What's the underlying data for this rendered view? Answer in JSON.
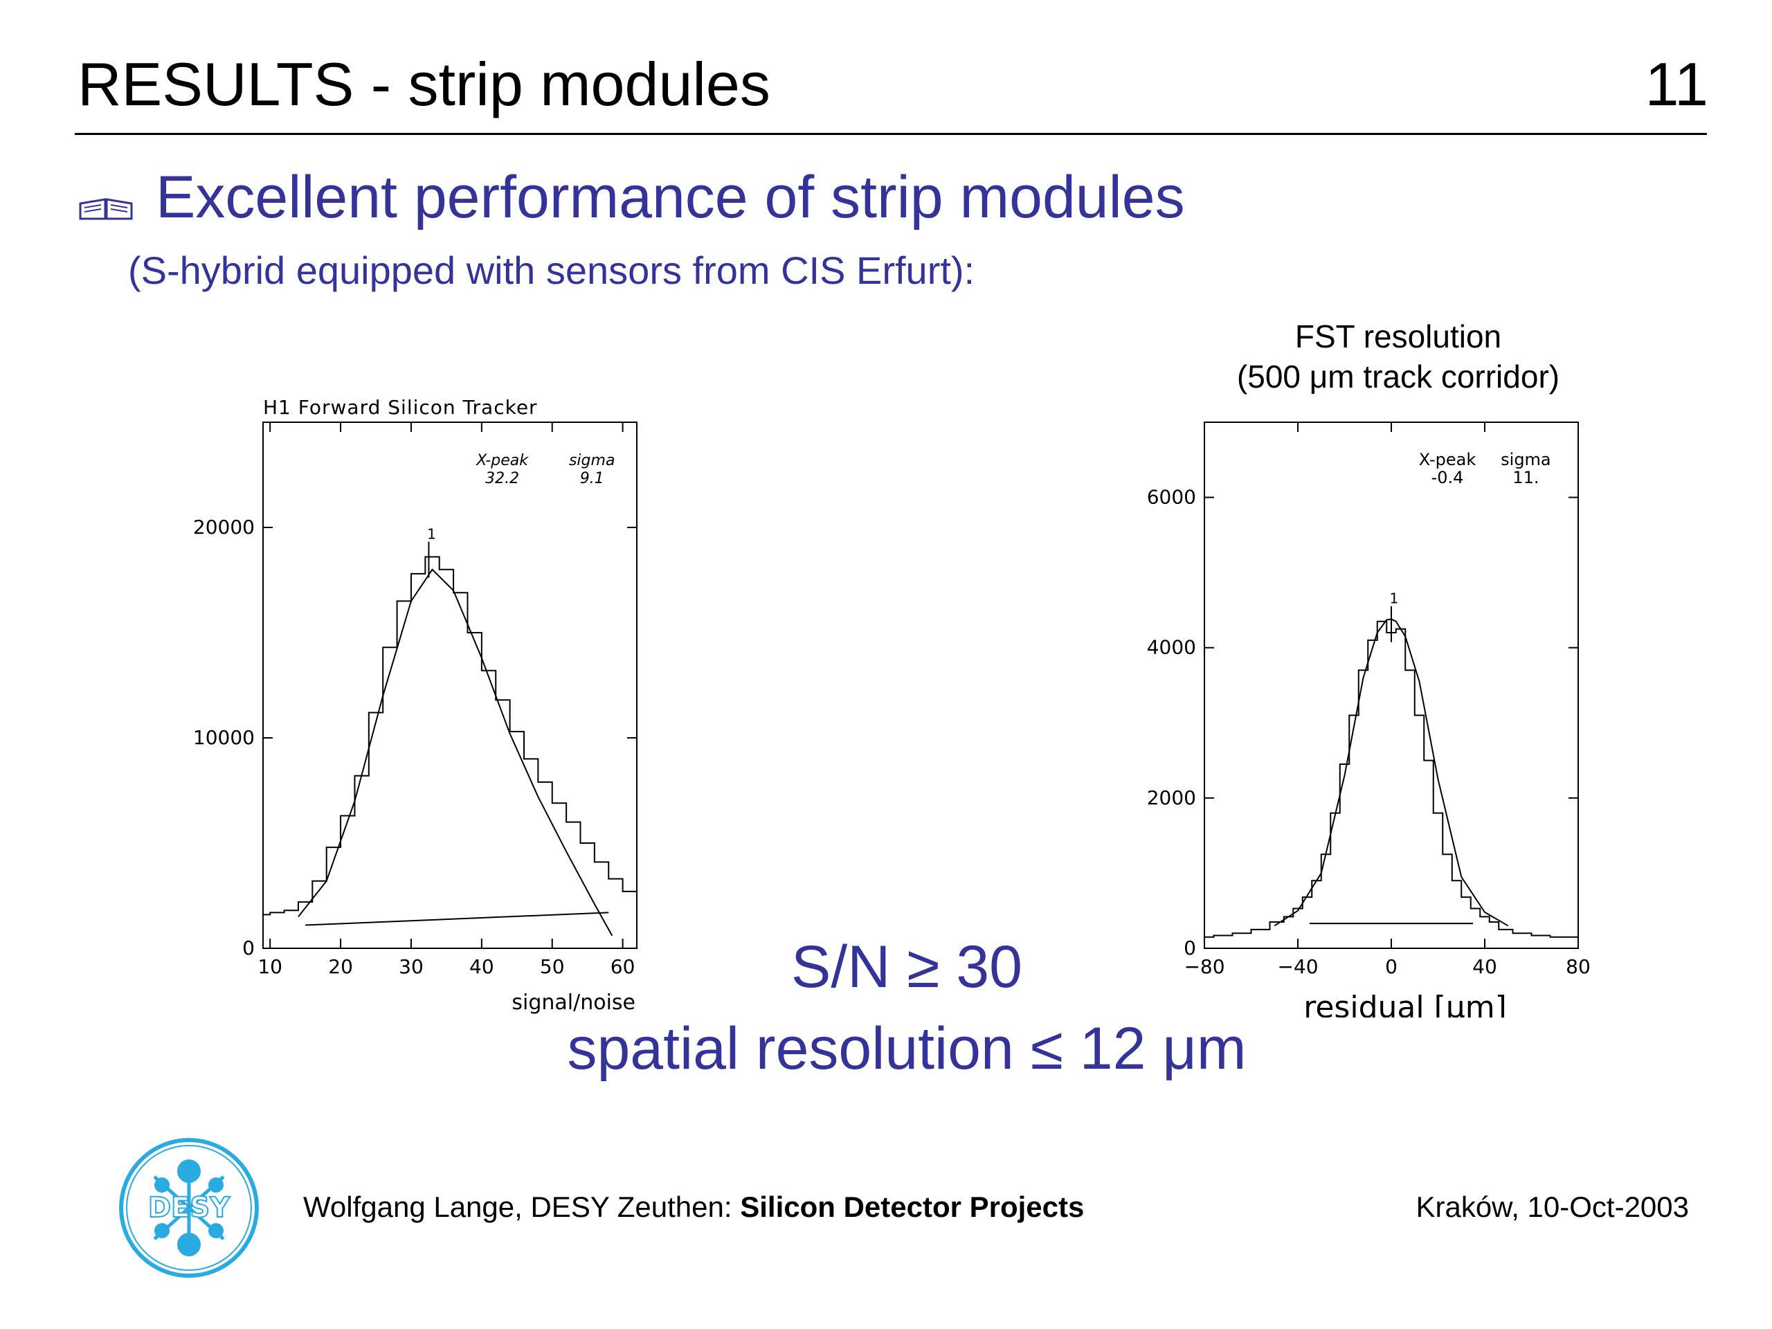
{
  "slide": {
    "title": "RESULTS - strip modules",
    "page_number": "11",
    "heading": "Excellent performance of strip modules",
    "subheading": "(S-hybrid equipped with sensors from CIS Erfurt):",
    "bullet_icon": "book-icon",
    "sn_statement": "S/N ≥ 30",
    "resolution_statement": "spatial resolution ≤ 12 μm",
    "footer": {
      "author": "Wolfgang Lange, DESY Zeuthen: ",
      "project": "Silicon Detector Projects",
      "date": "Kraków, 10-Oct-2003",
      "logo_text": "DESY"
    }
  },
  "colors": {
    "accent": "#333399",
    "logo": "#29abe2"
  },
  "chart_data": [
    {
      "type": "histogram",
      "title": "H1 Forward Silicon Tracker",
      "xlabel": "signal/noise",
      "ylabel": "",
      "xlim": [
        9,
        62
      ],
      "ylim": [
        0,
        25000
      ],
      "xticks": [
        10,
        20,
        30,
        40,
        50,
        60
      ],
      "yticks": [
        0,
        10000,
        20000
      ],
      "ytick_labels": [
        "0",
        "10000",
        "20000"
      ],
      "fit_params": {
        "names": [
          "X-peak",
          "sigma"
        ],
        "values": [
          "32.2",
          "9.1"
        ]
      },
      "peak_marker": "1",
      "bins_x": [
        9,
        11,
        13,
        15,
        17,
        19,
        21,
        23,
        25,
        27,
        29,
        31,
        33,
        35,
        37,
        39,
        41,
        43,
        45,
        47,
        49,
        51,
        53,
        55,
        57,
        59,
        61
      ],
      "bins_y": [
        1600,
        1700,
        1800,
        2200,
        3200,
        4800,
        6300,
        8200,
        11200,
        14300,
        16500,
        17800,
        18600,
        18000,
        16900,
        15000,
        13200,
        11800,
        10300,
        9000,
        7900,
        6900,
        6000,
        5000,
        4100,
        3300,
        2700
      ],
      "fit_curve": {
        "x": [
          14,
          18,
          22,
          26,
          30,
          33,
          36,
          40,
          44,
          48,
          52,
          56,
          58.5
        ],
        "y": [
          1500,
          3200,
          7000,
          12000,
          16500,
          18000,
          17000,
          13800,
          10200,
          7200,
          4600,
          2100,
          600
        ]
      },
      "background_line": {
        "x": [
          15,
          58
        ],
        "y": [
          1100,
          1700
        ]
      }
    },
    {
      "type": "histogram",
      "title": [
        "FST resolution",
        "(500 μm track corridor)"
      ],
      "xlabel": "residual [μm]",
      "ylabel": "",
      "xlim": [
        -80,
        80
      ],
      "ylim": [
        0,
        7000
      ],
      "xticks": [
        -80,
        -40,
        0,
        40,
        80
      ],
      "xtick_labels": [
        "−80",
        "−40",
        "0",
        "40",
        "80"
      ],
      "yticks": [
        0,
        2000,
        4000,
        6000
      ],
      "ytick_labels": [
        "0",
        "2000",
        "4000",
        "6000"
      ],
      "fit_params": {
        "names": [
          "X-peak",
          "sigma"
        ],
        "values": [
          "-0.4",
          "11."
        ]
      },
      "peak_marker": "1",
      "bins_x": [
        -80,
        -72,
        -64,
        -56,
        -48,
        -44,
        -40,
        -36,
        -32,
        -28,
        -24,
        -20,
        -16,
        -12,
        -8,
        -4,
        0,
        4,
        8,
        12,
        16,
        20,
        24,
        28,
        32,
        36,
        40,
        44,
        48,
        56,
        64,
        72,
        80
      ],
      "bins_y": [
        150,
        170,
        200,
        250,
        350,
        420,
        530,
        680,
        900,
        1250,
        1800,
        2450,
        3100,
        3700,
        4100,
        4350,
        4200,
        4250,
        3700,
        3100,
        2500,
        1800,
        1250,
        900,
        680,
        530,
        420,
        350,
        250,
        200,
        170,
        150,
        150
      ],
      "fit_curve": {
        "x": [
          -50,
          -40,
          -30,
          -20,
          -12,
          -6,
          -2,
          0,
          2,
          6,
          12,
          20,
          30,
          40,
          50
        ],
        "y": [
          300,
          500,
          1000,
          2300,
          3600,
          4200,
          4370,
          4380,
          4350,
          4150,
          3550,
          2250,
          950,
          480,
          300
        ]
      },
      "background_line": {
        "x": [
          -35,
          35
        ],
        "y": [
          330,
          330
        ]
      }
    }
  ]
}
